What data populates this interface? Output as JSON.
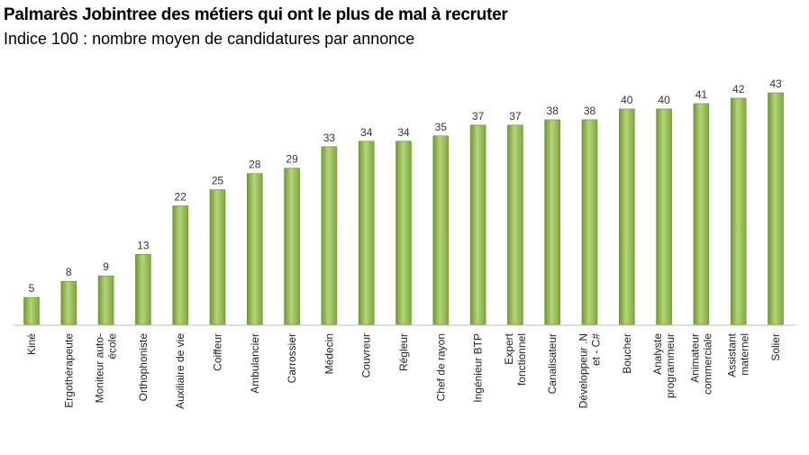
{
  "chart_data": {
    "type": "bar",
    "title": "Palmarès Jobintree des métiers qui ont le plus de mal à recruter",
    "subtitle": "Indice 100 : nombre moyen de candidatures par annonce",
    "xlabel": "",
    "ylabel": "",
    "ylim": [
      0,
      43
    ],
    "grid": false,
    "legend": "none",
    "bar_color": "#8fb84a",
    "categories": [
      "Kiné",
      "Ergothérapeute",
      "Moniteur auto-\nécole",
      "Orthophoniste",
      "Auxiliaire de vie",
      "Coiffeur",
      "Ambulancier",
      "Carrossier",
      "Médecin",
      "Couvreur",
      "Régleur",
      "Chef de rayon",
      "Ingénieur BTP",
      "Expert\nfonctionnel",
      "Canalisateur",
      "Développeur .N\net - C#",
      "Boucher",
      "Analyste\nprogrammeur",
      "Animateur\ncommerciale",
      "Assistant\nmaternel",
      "Solier"
    ],
    "values": [
      5,
      8,
      9,
      13,
      22,
      25,
      28,
      29,
      33,
      34,
      34,
      35,
      37,
      37,
      38,
      38,
      40,
      40,
      41,
      42,
      43
    ]
  }
}
